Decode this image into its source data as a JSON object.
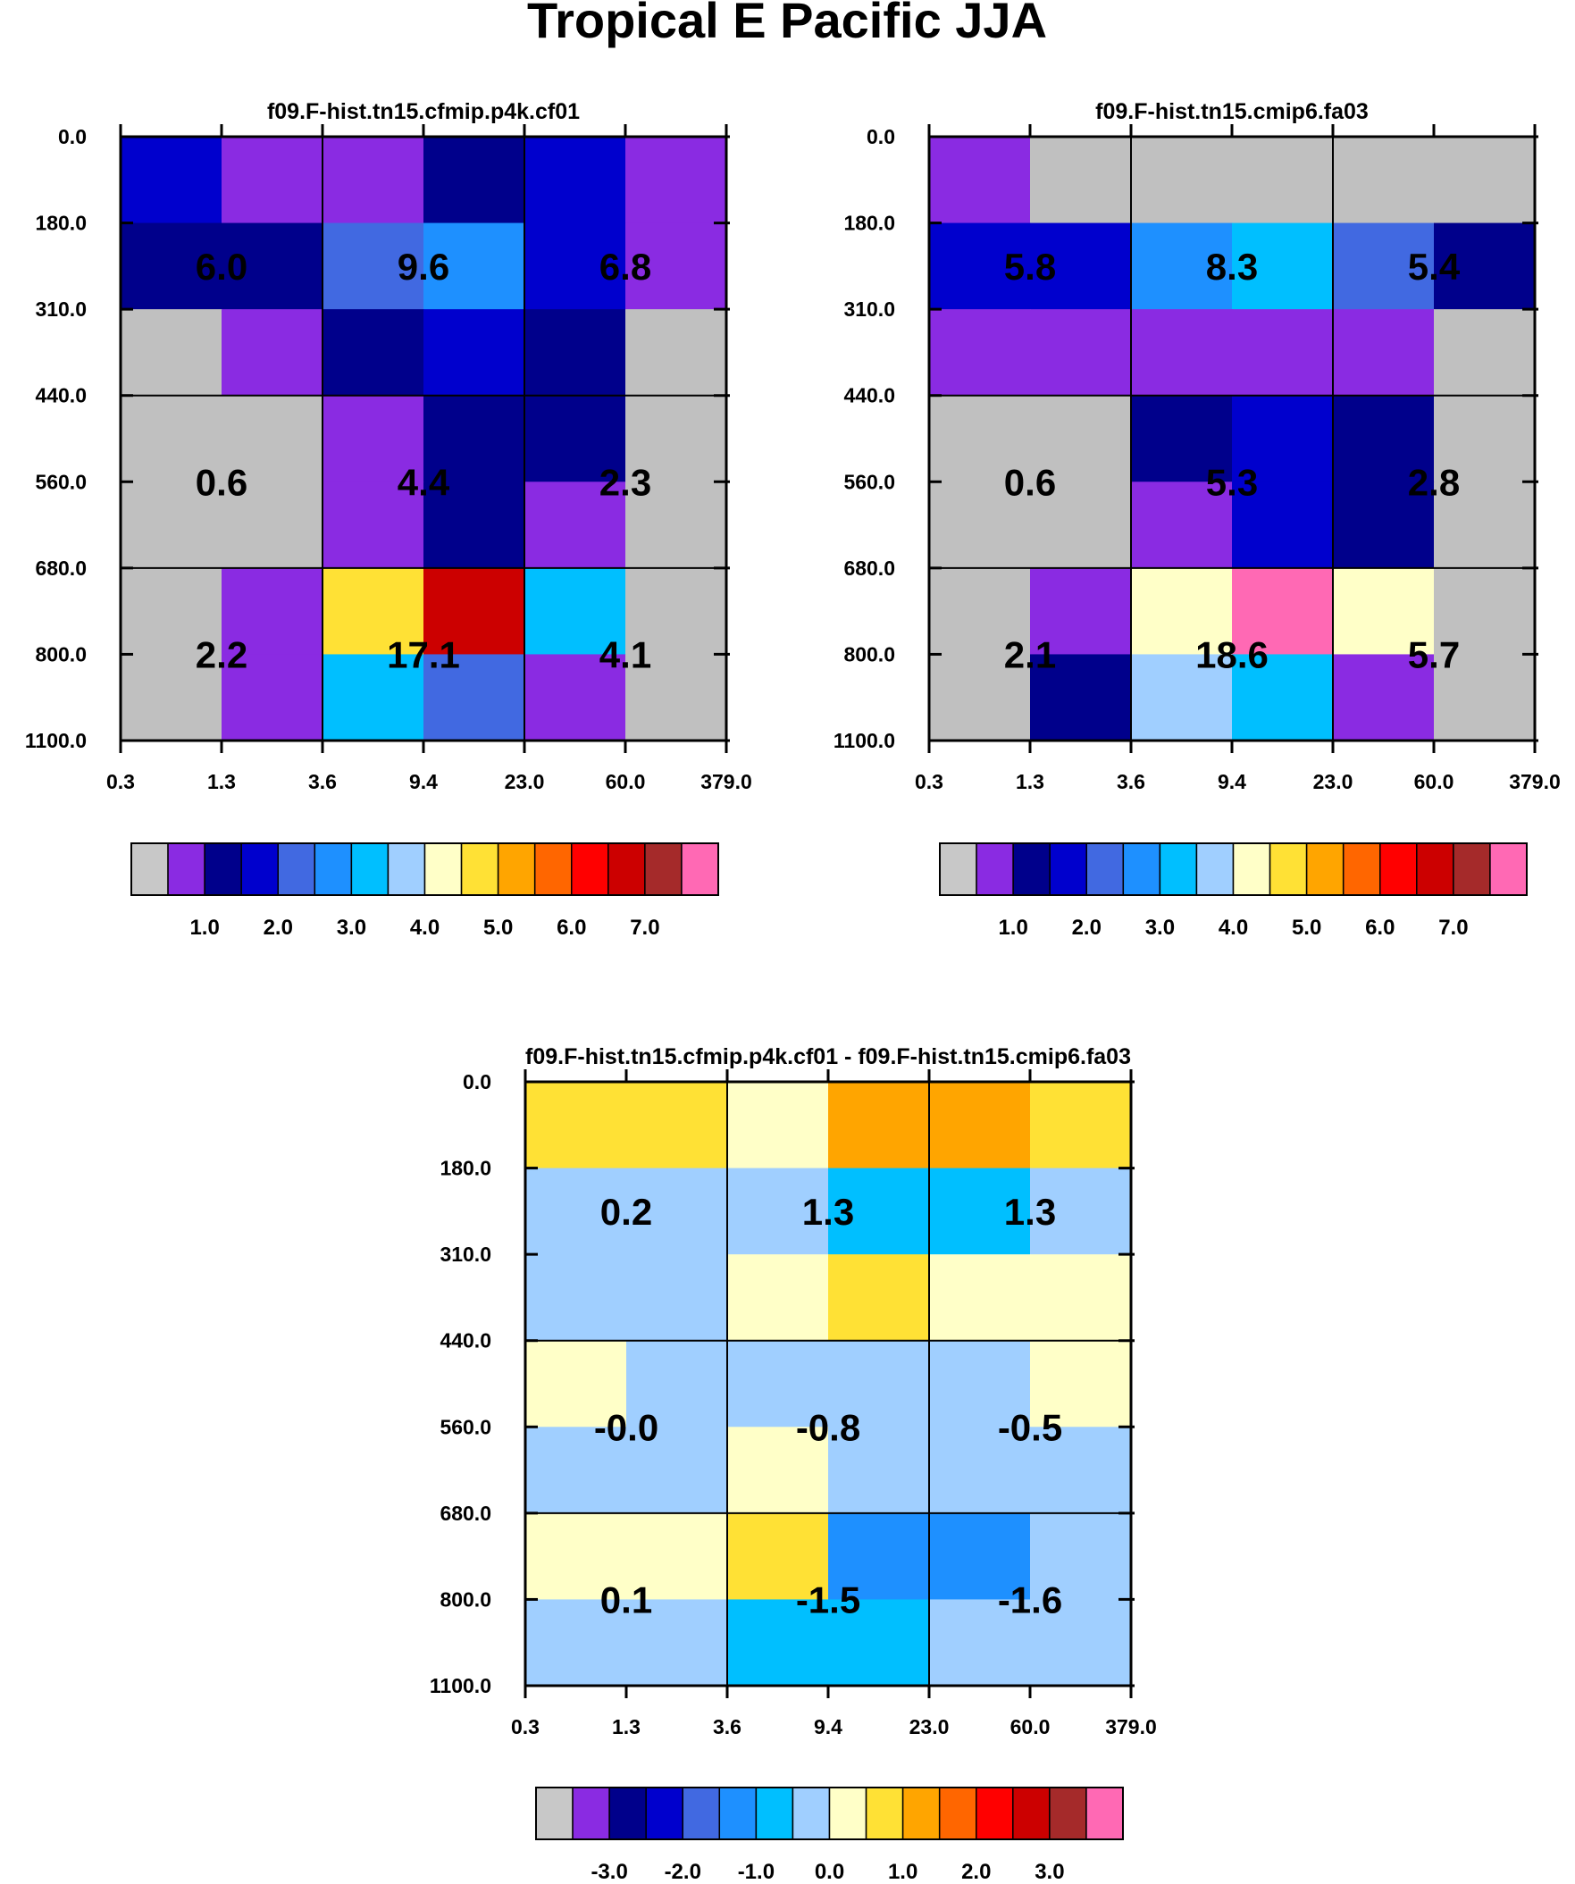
{
  "figure_title": "Tropical E Pacific JJA",
  "chart_data": [
    {
      "type": "heatmap",
      "title": "f09.F-hist.tn15.cfmip.p4k.cf01",
      "x_ticks": [
        "0.3",
        "1.3",
        "3.6",
        "9.4",
        "23.0",
        "60.0",
        "379.0"
      ],
      "y_ticks": [
        "0.0",
        "180.0",
        "310.0",
        "440.0",
        "560.0",
        "680.0",
        "800.0",
        "1100.0"
      ],
      "grid_lines": true,
      "cells": [
        [
          "#0000CD",
          "#8A2BE2",
          "#8A2BE2",
          "#00008B",
          "#0000CD",
          "#8A2BE2"
        ],
        [
          "#00008B",
          "#00008B",
          "#4169E1",
          "#1E90FF",
          "#0000CD",
          "#8A2BE2"
        ],
        [
          "#C0C0C0",
          "#8A2BE2",
          "#00008B",
          "#0000CD",
          "#00008B",
          "#C0C0C0"
        ],
        [
          "#C0C0C0",
          "#C0C0C0",
          "#8A2BE2",
          "#00008B",
          "#00008B",
          "#C0C0C0"
        ],
        [
          "#C0C0C0",
          "#C0C0C0",
          "#8A2BE2",
          "#00008B",
          "#8A2BE2",
          "#C0C0C0"
        ],
        [
          "#C0C0C0",
          "#8A2BE2",
          "#FFE135",
          "#CC0000",
          "#00BFFF",
          "#C0C0C0"
        ],
        [
          "#C0C0C0",
          "#8A2BE2",
          "#00BFFF",
          "#4169E1",
          "#8A2BE2",
          "#C0C0C0"
        ]
      ],
      "block_values": [
        [
          "6.0",
          "9.6",
          "6.8"
        ],
        [
          "0.6",
          "4.4",
          "2.3"
        ],
        [
          "2.2",
          "17.1",
          "4.1"
        ]
      ],
      "colorbar": {
        "colors": [
          "#C8C8C8",
          "#8A2BE2",
          "#00008B",
          "#0000CD",
          "#4169E1",
          "#1E90FF",
          "#00BFFF",
          "#A0CFFF",
          "#FFFFC8",
          "#FFE135",
          "#FFA500",
          "#FF6600",
          "#FF0000",
          "#CC0000",
          "#A52A2A",
          "#FF69B4"
        ],
        "labels": [
          "1.0",
          "2.0",
          "3.0",
          "4.0",
          "5.0",
          "6.0",
          "7.0"
        ]
      }
    },
    {
      "type": "heatmap",
      "title": "f09.F-hist.tn15.cmip6.fa03",
      "x_ticks": [
        "0.3",
        "1.3",
        "3.6",
        "9.4",
        "23.0",
        "60.0",
        "379.0"
      ],
      "y_ticks": [
        "0.0",
        "180.0",
        "310.0",
        "440.0",
        "560.0",
        "680.0",
        "800.0",
        "1100.0"
      ],
      "grid_lines": true,
      "cells": [
        [
          "#8A2BE2",
          "#C0C0C0",
          "#C0C0C0",
          "#C0C0C0",
          "#C0C0C0",
          "#C0C0C0"
        ],
        [
          "#0000CD",
          "#0000CD",
          "#1E90FF",
          "#00BFFF",
          "#4169E1",
          "#00008B"
        ],
        [
          "#8A2BE2",
          "#8A2BE2",
          "#8A2BE2",
          "#8A2BE2",
          "#8A2BE2",
          "#C0C0C0"
        ],
        [
          "#C0C0C0",
          "#C0C0C0",
          "#00008B",
          "#0000CD",
          "#00008B",
          "#C0C0C0"
        ],
        [
          "#C0C0C0",
          "#C0C0C0",
          "#8A2BE2",
          "#0000CD",
          "#00008B",
          "#C0C0C0"
        ],
        [
          "#C0C0C0",
          "#8A2BE2",
          "#FFFFC8",
          "#FF69B4",
          "#FFFFC8",
          "#C0C0C0"
        ],
        [
          "#C0C0C0",
          "#00008B",
          "#A0CFFF",
          "#00BFFF",
          "#8A2BE2",
          "#C0C0C0"
        ]
      ],
      "block_values": [
        [
          "5.8",
          "8.3",
          "5.4"
        ],
        [
          "0.6",
          "5.3",
          "2.8"
        ],
        [
          "2.1",
          "18.6",
          "5.7"
        ]
      ],
      "colorbar": {
        "colors": [
          "#C8C8C8",
          "#8A2BE2",
          "#00008B",
          "#0000CD",
          "#4169E1",
          "#1E90FF",
          "#00BFFF",
          "#A0CFFF",
          "#FFFFC8",
          "#FFE135",
          "#FFA500",
          "#FF6600",
          "#FF0000",
          "#CC0000",
          "#A52A2A",
          "#FF69B4"
        ],
        "labels": [
          "1.0",
          "2.0",
          "3.0",
          "4.0",
          "5.0",
          "6.0",
          "7.0"
        ]
      }
    },
    {
      "type": "heatmap",
      "title": "f09.F-hist.tn15.cfmip.p4k.cf01 - f09.F-hist.tn15.cmip6.fa03",
      "x_ticks": [
        "0.3",
        "1.3",
        "3.6",
        "9.4",
        "23.0",
        "60.0",
        "379.0"
      ],
      "y_ticks": [
        "0.0",
        "180.0",
        "310.0",
        "440.0",
        "560.0",
        "680.0",
        "800.0",
        "1100.0"
      ],
      "grid_lines": true,
      "cells": [
        [
          "#FFE135",
          "#FFE135",
          "#FFFFC8",
          "#FFA500",
          "#FFA500",
          "#FFE135"
        ],
        [
          "#A0CFFF",
          "#A0CFFF",
          "#A0CFFF",
          "#00BFFF",
          "#00BFFF",
          "#A0CFFF"
        ],
        [
          "#A0CFFF",
          "#A0CFFF",
          "#FFFFC8",
          "#FFE135",
          "#FFFFC8",
          "#FFFFC8"
        ],
        [
          "#FFFFC8",
          "#A0CFFF",
          "#A0CFFF",
          "#A0CFFF",
          "#A0CFFF",
          "#FFFFC8"
        ],
        [
          "#A0CFFF",
          "#A0CFFF",
          "#FFFFC8",
          "#A0CFFF",
          "#A0CFFF",
          "#A0CFFF"
        ],
        [
          "#FFFFC8",
          "#FFFFC8",
          "#FFE135",
          "#1E90FF",
          "#1E90FF",
          "#A0CFFF"
        ],
        [
          "#A0CFFF",
          "#A0CFFF",
          "#00BFFF",
          "#00BFFF",
          "#A0CFFF",
          "#A0CFFF"
        ]
      ],
      "block_values": [
        [
          "0.2",
          "1.3",
          "1.3"
        ],
        [
          "-0.0",
          "-0.8",
          "-0.5"
        ],
        [
          "0.1",
          "-1.5",
          "-1.6"
        ]
      ],
      "colorbar": {
        "colors": [
          "#C8C8C8",
          "#8A2BE2",
          "#00008B",
          "#0000CD",
          "#4169E1",
          "#1E90FF",
          "#00BFFF",
          "#A0CFFF",
          "#FFFFC8",
          "#FFE135",
          "#FFA500",
          "#FF6600",
          "#FF0000",
          "#CC0000",
          "#A52A2A",
          "#FF69B4"
        ],
        "labels": [
          "-3.0",
          "-2.0",
          "-1.0",
          "0.0",
          "1.0",
          "2.0",
          "3.0"
        ]
      }
    }
  ]
}
